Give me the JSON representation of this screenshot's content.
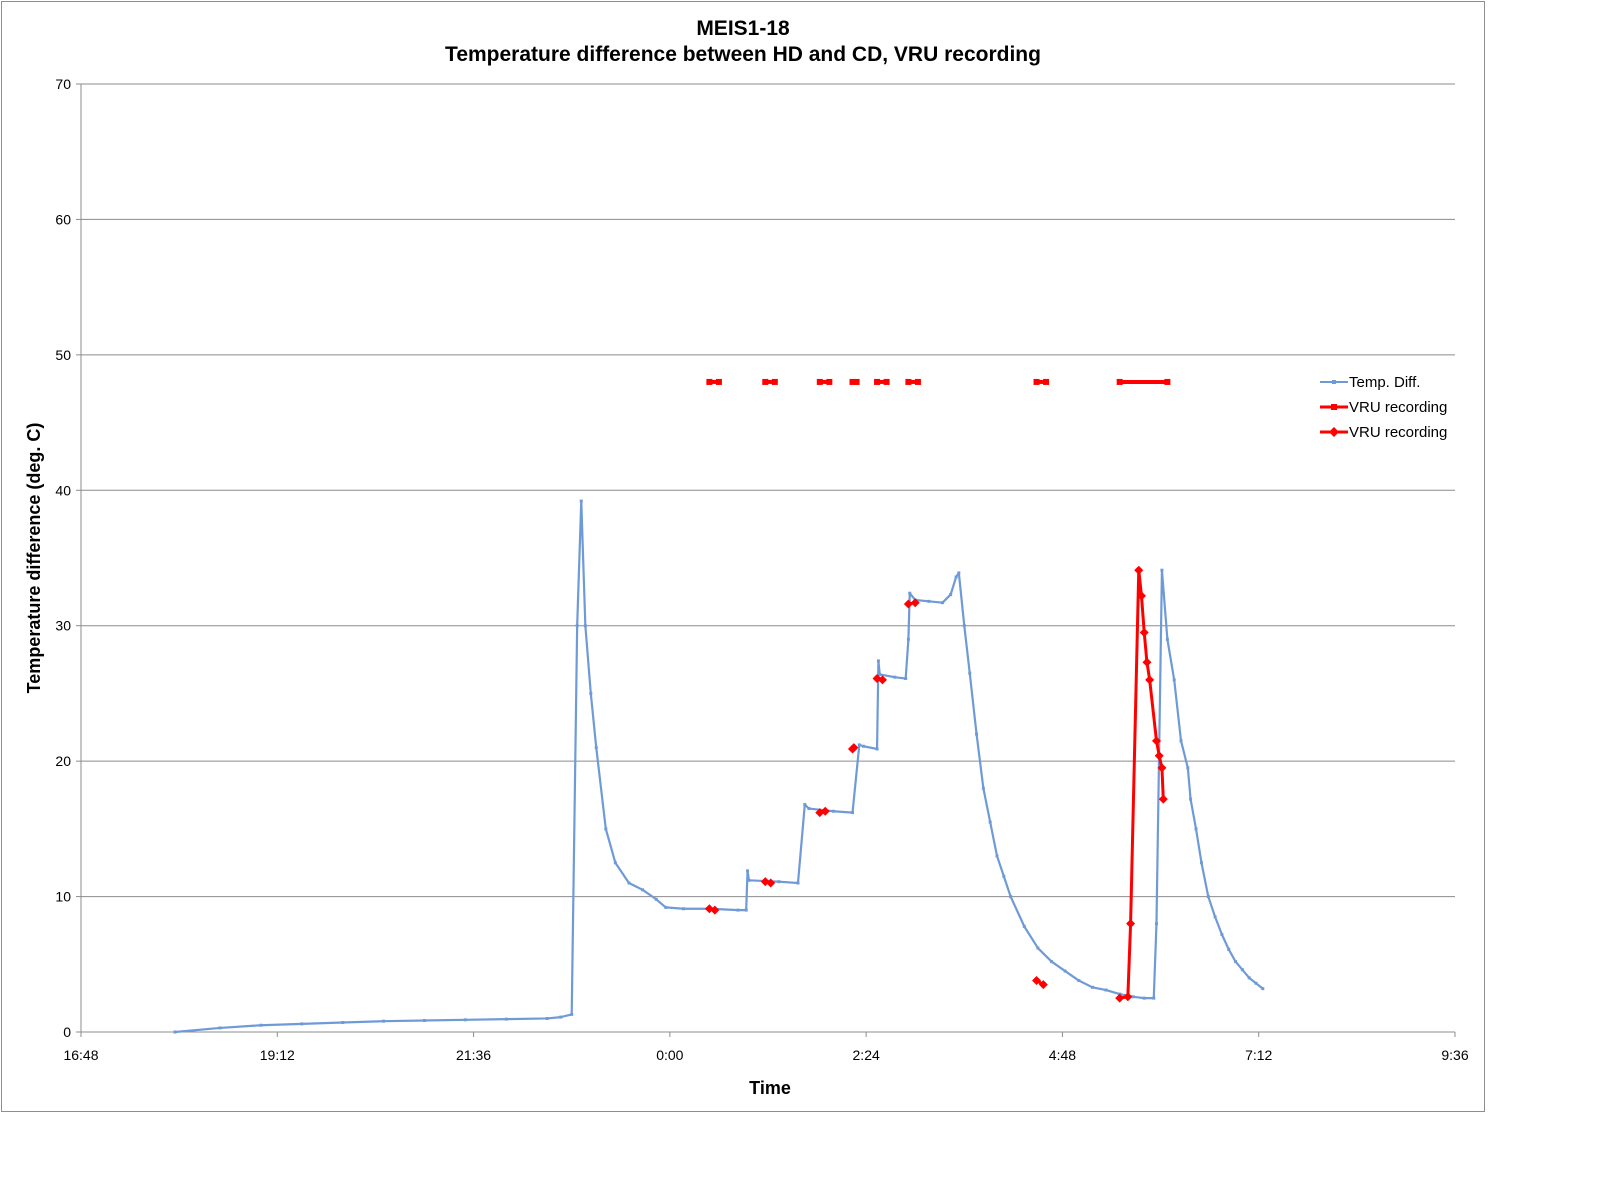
{
  "chart_data": {
    "type": "line",
    "title": "MEIS1-18",
    "subtitle": "Temperature difference between HD and CD, VRU recording",
    "xlabel": "Time",
    "ylabel": "Temperature difference (deg. C)",
    "xlim": [
      "16:48",
      "9:36"
    ],
    "ylim": [
      0,
      70
    ],
    "x_ticks": [
      "16:48",
      "19:12",
      "21:36",
      "0:00",
      "2:24",
      "4:48",
      "7:12",
      "9:36"
    ],
    "y_ticks": [
      0,
      10,
      20,
      30,
      40,
      50,
      60,
      70
    ],
    "grid": "horizontal",
    "legend_position": "right",
    "colors": {
      "temp": "#6f9ad8",
      "vru": "#ff0000",
      "grid": "#8c8c8c"
    },
    "series": [
      {
        "name": "Temp. Diff.",
        "color": "#6f9ad8",
        "marker": "small-diamond",
        "points": [
          [
            "17:57",
            0.0
          ],
          [
            "18:30",
            0.3
          ],
          [
            "19:00",
            0.5
          ],
          [
            "19:30",
            0.6
          ],
          [
            "20:00",
            0.7
          ],
          [
            "20:30",
            0.8
          ],
          [
            "21:00",
            0.85
          ],
          [
            "21:30",
            0.9
          ],
          [
            "22:00",
            0.95
          ],
          [
            "22:30",
            1.0
          ],
          [
            "22:40",
            1.1
          ],
          [
            "22:48",
            1.3
          ],
          [
            "22:52",
            30.0
          ],
          [
            "22:55",
            39.2
          ],
          [
            "22:58",
            30.0
          ],
          [
            "23:02",
            25.0
          ],
          [
            "23:06",
            21.0
          ],
          [
            "23:13",
            15.0
          ],
          [
            "23:20",
            12.5
          ],
          [
            "23:30",
            11.0
          ],
          [
            "23:40",
            10.5
          ],
          [
            "23:50",
            9.8
          ],
          [
            "23:57",
            9.2
          ],
          [
            "0:10",
            9.1
          ],
          [
            "0:30",
            9.1
          ],
          [
            "0:50",
            9.0
          ],
          [
            "0:56",
            9.0
          ],
          [
            "0:57",
            11.9
          ],
          [
            "0:58",
            11.2
          ],
          [
            "1:20",
            11.1
          ],
          [
            "1:34",
            11.0
          ],
          [
            "1:39",
            16.8
          ],
          [
            "1:42",
            16.5
          ],
          [
            "2:00",
            16.3
          ],
          [
            "2:14",
            16.2
          ],
          [
            "2:19",
            21.2
          ],
          [
            "2:22",
            21.1
          ],
          [
            "2:32",
            20.9
          ],
          [
            "2:33",
            27.4
          ],
          [
            "2:34",
            26.4
          ],
          [
            "2:45",
            26.2
          ],
          [
            "2:53",
            26.1
          ],
          [
            "2:55",
            29.0
          ],
          [
            "2:56",
            32.4
          ],
          [
            "3:00",
            31.9
          ],
          [
            "3:10",
            31.8
          ],
          [
            "3:20",
            31.7
          ],
          [
            "3:26",
            32.3
          ],
          [
            "3:30",
            33.6
          ],
          [
            "3:32",
            33.9
          ],
          [
            "3:36",
            30.0
          ],
          [
            "3:40",
            26.5
          ],
          [
            "3:45",
            22.0
          ],
          [
            "3:50",
            18.0
          ],
          [
            "3:55",
            15.5
          ],
          [
            "4:00",
            13.0
          ],
          [
            "4:05",
            11.5
          ],
          [
            "4:10",
            10.0
          ],
          [
            "4:20",
            7.8
          ],
          [
            "4:30",
            6.2
          ],
          [
            "4:40",
            5.2
          ],
          [
            "4:50",
            4.5
          ],
          [
            "5:00",
            3.8
          ],
          [
            "5:10",
            3.3
          ],
          [
            "5:20",
            3.1
          ],
          [
            "5:30",
            2.8
          ],
          [
            "5:40",
            2.6
          ],
          [
            "5:48",
            2.5
          ],
          [
            "5:55",
            2.5
          ],
          [
            "5:57",
            8.0
          ],
          [
            "6:01",
            34.1
          ],
          [
            "6:05",
            29.0
          ],
          [
            "6:10",
            26.0
          ],
          [
            "6:15",
            21.5
          ],
          [
            "6:20",
            19.5
          ],
          [
            "6:22",
            17.2
          ],
          [
            "6:26",
            15.0
          ],
          [
            "6:30",
            12.5
          ],
          [
            "6:35",
            10.0
          ],
          [
            "6:40",
            8.5
          ],
          [
            "6:45",
            7.2
          ],
          [
            "6:50",
            6.1
          ],
          [
            "6:55",
            5.2
          ],
          [
            "7:00",
            4.6
          ],
          [
            "7:05",
            4.0
          ],
          [
            "7:10",
            3.6
          ],
          [
            "7:15",
            3.2
          ]
        ]
      },
      {
        "name": "VRU recording",
        "color": "#ff0000",
        "marker": "small-square",
        "y": 48,
        "intervals": [
          [
            "0:29",
            "0:36"
          ],
          [
            "1:10",
            "1:17"
          ],
          [
            "1:50",
            "1:57"
          ],
          [
            "2:14",
            "2:17"
          ],
          [
            "2:32",
            "2:39"
          ],
          [
            "2:55",
            "3:02"
          ],
          [
            "4:29",
            "4:36"
          ],
          [
            "5:30",
            "6:05"
          ]
        ]
      },
      {
        "name": "VRU recording",
        "color": "#ff0000",
        "marker": "diamond",
        "segments": [
          [
            [
              "0:29",
              9.1
            ],
            [
              "0:33",
              9.0
            ]
          ],
          [
            [
              "1:10",
              11.1
            ],
            [
              "1:14",
              11.0
            ]
          ],
          [
            [
              "1:50",
              16.2
            ],
            [
              "1:54",
              16.3
            ]
          ],
          [
            [
              "2:14",
              20.9
            ],
            [
              "2:15",
              21.0
            ]
          ],
          [
            [
              "2:32",
              26.1
            ],
            [
              "2:36",
              26.0
            ]
          ],
          [
            [
              "2:55",
              31.6
            ],
            [
              "3:00",
              31.7
            ]
          ],
          [
            [
              "4:29",
              3.8
            ],
            [
              "4:34",
              3.5
            ]
          ],
          [
            [
              "5:30",
              2.5
            ],
            [
              "5:36",
              2.6
            ],
            [
              "5:38",
              8.0
            ],
            [
              "5:44",
              34.1
            ],
            [
              "5:46",
              32.2
            ],
            [
              "5:48",
              29.5
            ],
            [
              "5:50",
              27.3
            ],
            [
              "5:52",
              26.0
            ],
            [
              "5:57",
              21.5
            ],
            [
              "5:59",
              20.4
            ],
            [
              "6:01",
              19.5
            ],
            [
              "6:02",
              17.2
            ]
          ]
        ]
      }
    ]
  }
}
